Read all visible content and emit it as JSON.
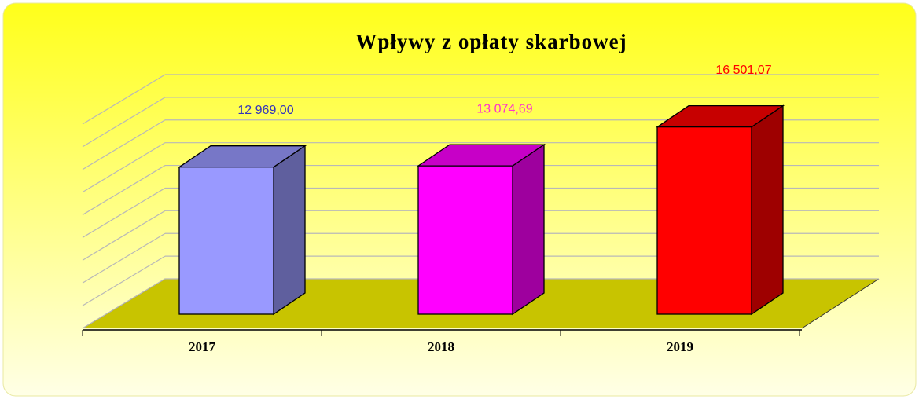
{
  "chart_data": {
    "type": "bar3d",
    "title": "Wpływy z opłaty skarbowej",
    "categories": [
      "2017",
      "2018",
      "2019"
    ],
    "values": [
      12969.0,
      13074.69,
      16501.07
    ],
    "value_labels": [
      "12 969,00",
      "13 074,69",
      "16 501,07"
    ],
    "colors": [
      "#9999ff",
      "#ff00ff",
      "#ff0000"
    ],
    "label_colors": [
      "#3333bb",
      "#ff33cc",
      "#ff0000"
    ],
    "ylim": [
      0,
      18000
    ],
    "yticks": [
      0,
      2000,
      4000,
      6000,
      8000,
      10000,
      12000,
      14000,
      16000,
      18000
    ],
    "grid": true
  }
}
